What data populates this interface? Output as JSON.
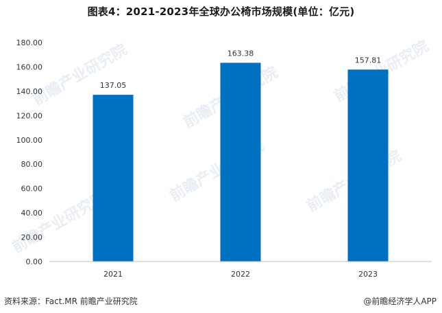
{
  "title": "图表4：2021-2023年全球办公椅市场规模(单位：亿元)",
  "watermark_text": "前瞻产业研究院",
  "footer": {
    "source": "资料来源：Fact.MR 前瞻产业研究院",
    "brand": "@前瞻经济学人APP"
  },
  "colors": {
    "bar": "#0070C0",
    "axis": "#bfbfbf",
    "grid": "#ffffff",
    "text": "#333333"
  },
  "chart_data": {
    "type": "bar",
    "categories": [
      "2021",
      "2022",
      "2023"
    ],
    "values": [
      137.05,
      163.38,
      157.81
    ],
    "value_labels": [
      "137.05",
      "163.38",
      "157.81"
    ],
    "title": "图表4：2021-2023年全球办公椅市场规模(单位：亿元)",
    "xlabel": "",
    "ylabel": "",
    "ylim": [
      0,
      180
    ],
    "yticks": [
      "0.00",
      "20.00",
      "40.00",
      "60.00",
      "80.00",
      "100.00",
      "120.00",
      "140.00",
      "160.00",
      "180.00"
    ],
    "grid": false,
    "legend": "none"
  }
}
